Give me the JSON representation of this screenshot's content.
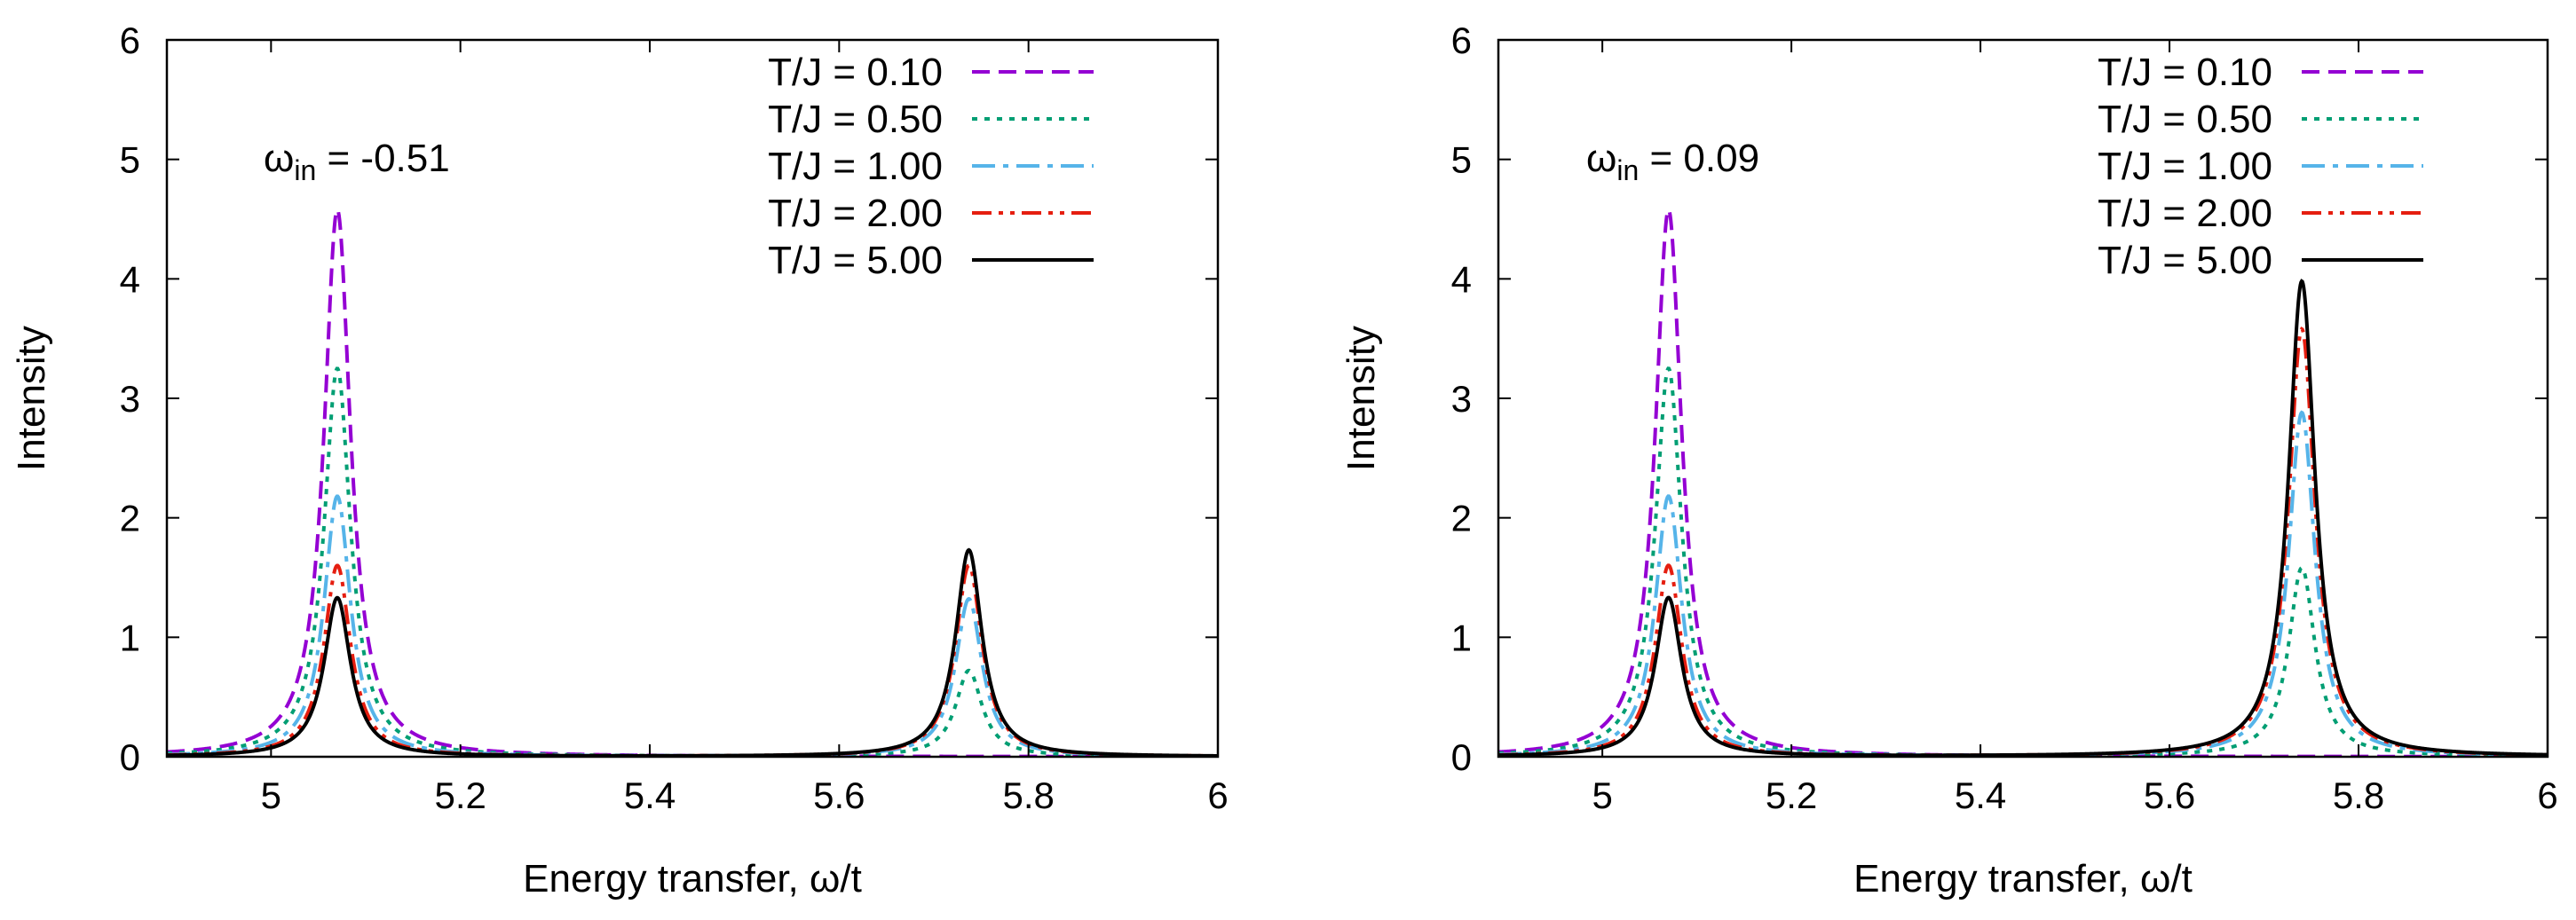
{
  "chart_data": [
    {
      "type": "line",
      "panel": "left",
      "xlabel": "Energy transfer, ω/t",
      "ylabel": "Intensity",
      "xlim": [
        4.89,
        6.0
      ],
      "ylim": [
        0,
        6
      ],
      "xticks": [
        "5",
        "5.2",
        "5.4",
        "5.6",
        "5.8",
        "6"
      ],
      "xtick_values": [
        5.0,
        5.2,
        5.4,
        5.6,
        5.8,
        6.0
      ],
      "yticks": [
        "0",
        "1",
        "2",
        "3",
        "4",
        "5",
        "6"
      ],
      "ytick_values": [
        0,
        1,
        2,
        3,
        4,
        5,
        6
      ],
      "annotation": {
        "symbol": "ω",
        "subscript": "in",
        "value": " = -0.51"
      },
      "legend_position": "top-right",
      "peak_centers": [
        5.07,
        5.737
      ],
      "peak_width": 0.017,
      "series": [
        {
          "name": "T/J = 0.10",
          "color": "#9400d3",
          "dash": "dashed",
          "peak_heights": [
            4.58,
            0.0
          ]
        },
        {
          "name": "T/J = 0.50",
          "color": "#009e73",
          "dash": "dotted",
          "peak_heights": [
            3.25,
            0.72
          ]
        },
        {
          "name": "T/J = 1.00",
          "color": "#56b4e9",
          "dash": "dash-dot",
          "peak_heights": [
            2.18,
            1.32
          ]
        },
        {
          "name": "T/J = 2.00",
          "color": "#e51e10",
          "dash": "dash-dot-dot",
          "peak_heights": [
            1.6,
            1.6
          ]
        },
        {
          "name": "T/J = 5.00",
          "color": "#000000",
          "dash": "solid",
          "peak_heights": [
            1.33,
            1.73
          ]
        }
      ]
    },
    {
      "type": "line",
      "panel": "right",
      "xlabel": "Energy transfer, ω/t",
      "ylabel": "Intensity",
      "xlim": [
        4.89,
        6.0
      ],
      "ylim": [
        0,
        6
      ],
      "xticks": [
        "5",
        "5.2",
        "5.4",
        "5.6",
        "5.8",
        "6"
      ],
      "xtick_values": [
        5.0,
        5.2,
        5.4,
        5.6,
        5.8,
        6.0
      ],
      "yticks": [
        "0",
        "1",
        "2",
        "3",
        "4",
        "5",
        "6"
      ],
      "ytick_values": [
        0,
        1,
        2,
        3,
        4,
        5,
        6
      ],
      "annotation": {
        "symbol": "ω",
        "subscript": "in",
        "value": " = 0.09"
      },
      "legend_position": "top-right",
      "peak_centers": [
        5.07,
        5.74
      ],
      "peak_width": 0.017,
      "series": [
        {
          "name": "T/J = 0.10",
          "color": "#9400d3",
          "dash": "dashed",
          "peak_heights": [
            4.58,
            0.0
          ]
        },
        {
          "name": "T/J = 0.50",
          "color": "#009e73",
          "dash": "dotted",
          "peak_heights": [
            3.25,
            1.58
          ]
        },
        {
          "name": "T/J = 1.00",
          "color": "#56b4e9",
          "dash": "dash-dot",
          "peak_heights": [
            2.18,
            2.88
          ]
        },
        {
          "name": "T/J = 2.00",
          "color": "#e51e10",
          "dash": "dash-dot-dot",
          "peak_heights": [
            1.6,
            3.58
          ]
        },
        {
          "name": "T/J = 5.00",
          "color": "#000000",
          "dash": "solid",
          "peak_heights": [
            1.33,
            3.98
          ]
        }
      ]
    }
  ]
}
